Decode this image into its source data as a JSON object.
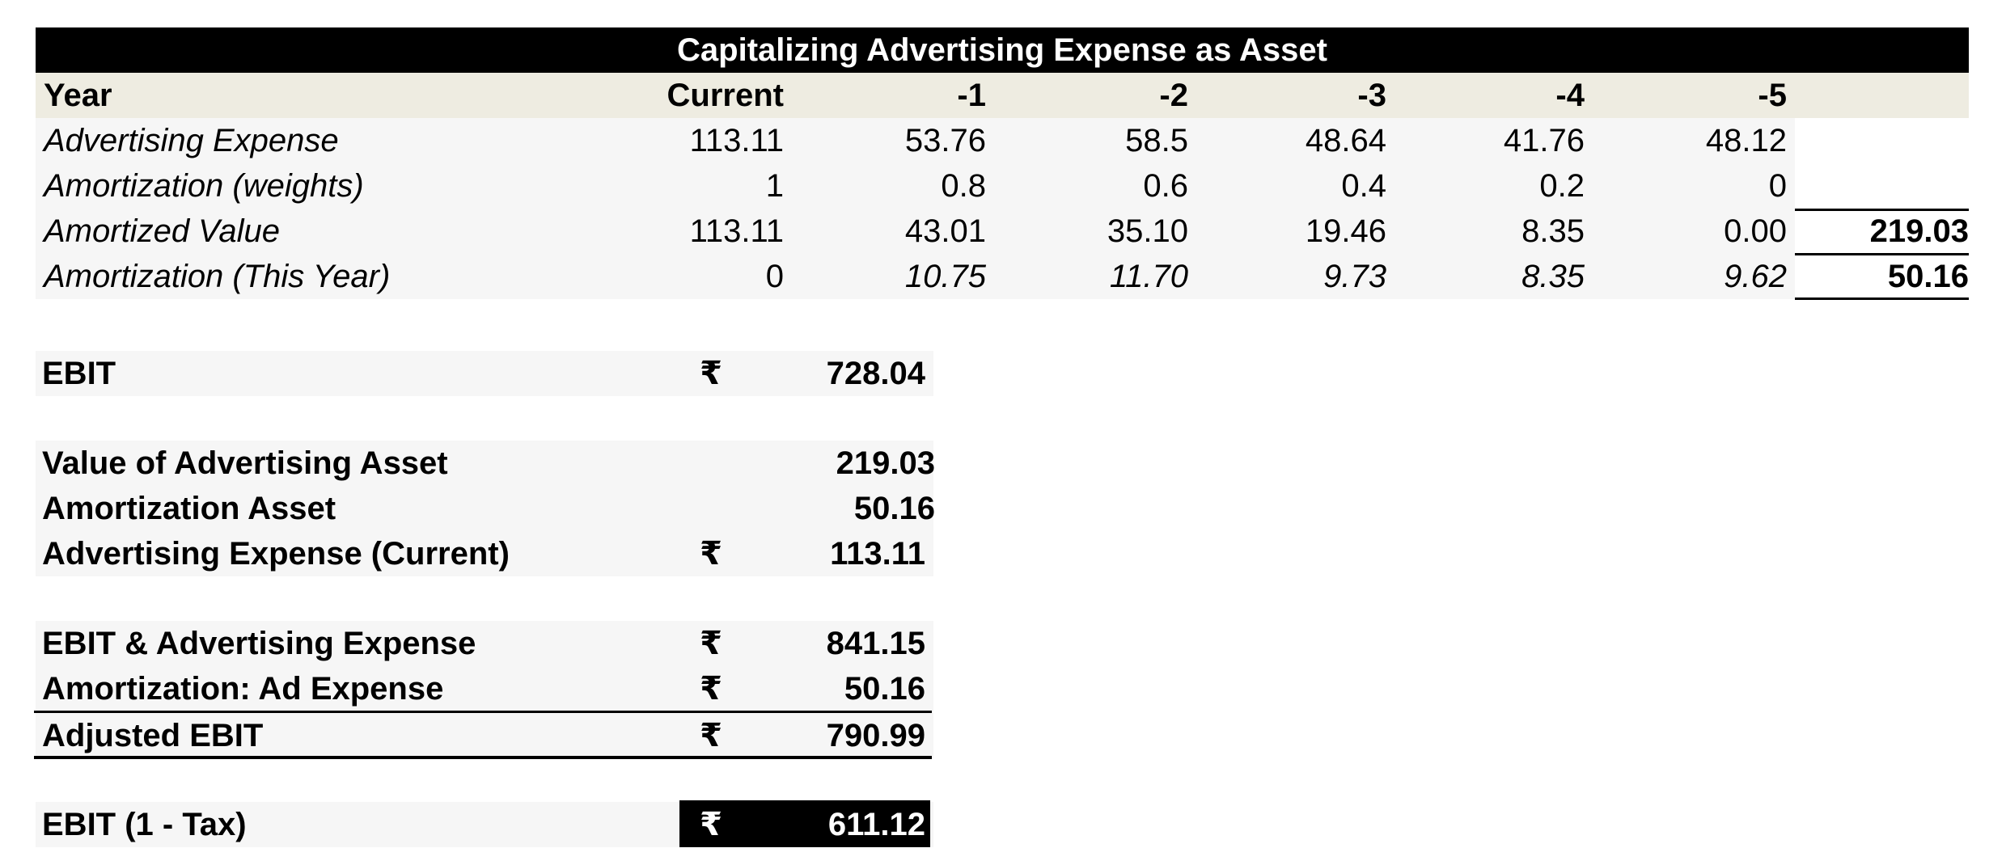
{
  "table": {
    "title": "Capitalizing Advertising Expense as Asset",
    "headers": [
      "Year",
      "Current",
      "-1",
      "-2",
      "-3",
      "-4",
      "-5"
    ],
    "rows": [
      {
        "label": "Advertising Expense",
        "values": [
          "113.11",
          "53.76",
          "58.5",
          "48.64",
          "41.76",
          "48.12"
        ],
        "total": ""
      },
      {
        "label": "Amortization (weights)",
        "values": [
          "1",
          "0.8",
          "0.6",
          "0.4",
          "0.2",
          "0"
        ],
        "total": ""
      },
      {
        "label": "Amortized Value",
        "values": [
          "113.11",
          "43.01",
          "35.10",
          "19.46",
          "8.35",
          "0.00"
        ],
        "total": "219.03"
      },
      {
        "label": "Amortization (This Year)",
        "values": [
          "0",
          "10.75",
          "11.70",
          "9.73",
          "8.35",
          "9.62"
        ],
        "total": "50.16"
      }
    ]
  },
  "summary": {
    "currency_symbol": "₹",
    "ebit": {
      "label": "EBIT",
      "value": "728.04"
    },
    "asset_value": {
      "label": "Value of Advertising Asset",
      "value": "219.03"
    },
    "amortization_asset": {
      "label": "Amortization Asset",
      "value": "50.16"
    },
    "ad_expense_current": {
      "label": "Advertising Expense (Current)",
      "value": "113.11"
    },
    "ebit_ad_expense": {
      "label": "EBIT & Advertising Expense",
      "value": "841.15"
    },
    "amortization_ad": {
      "label": "Amortization: Ad Expense",
      "value": "50.16"
    },
    "adjusted_ebit": {
      "label": "Adjusted EBIT",
      "value": "790.99"
    },
    "ebit_after_tax": {
      "label": "EBIT (1 - Tax)",
      "value": "611.12"
    }
  },
  "colors": {
    "title_bg": "#000000",
    "header_bg": "#eeece1",
    "row_bg": "#f6f6f6"
  }
}
